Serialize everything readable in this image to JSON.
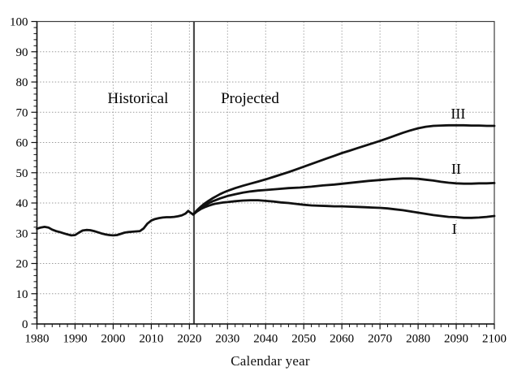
{
  "page": {
    "background": "#ffffff"
  },
  "chart_data": {
    "type": "line",
    "title": "",
    "xlabel": "Calendar year",
    "ylabel": "",
    "xlim": [
      1980,
      2100
    ],
    "ylim": [
      0,
      100
    ],
    "x_ticks": [
      1980,
      1990,
      2000,
      2010,
      2020,
      2030,
      2040,
      2050,
      2060,
      2070,
      2080,
      2090,
      2100
    ],
    "y_ticks": [
      0,
      10,
      20,
      30,
      40,
      50,
      60,
      70,
      80,
      90,
      100
    ],
    "x_minor_step": 2,
    "y_minor_step": 2,
    "grid": "dotted",
    "legend_position": "none",
    "line_color": "#111111",
    "grid_color": "#9b9b9b",
    "border_color": "#3c3c3c",
    "divider_color": "#4a4a4a",
    "text_color": "#000000",
    "divider_x": 2021.2,
    "annotations": [
      {
        "text": "Historical",
        "x": 2006.5,
        "y": 74.6
      },
      {
        "text": "Projected",
        "x": 2035.9,
        "y": 74.6
      }
    ],
    "series": [
      {
        "name": "historical",
        "label": "",
        "points": [
          [
            1980,
            31.5
          ],
          [
            1981,
            31.9
          ],
          [
            1982,
            32.1
          ],
          [
            1983,
            31.9
          ],
          [
            1984,
            31.2
          ],
          [
            1985,
            30.7
          ],
          [
            1986,
            30.4
          ],
          [
            1987,
            30.0
          ],
          [
            1988,
            29.6
          ],
          [
            1989,
            29.3
          ],
          [
            1990,
            29.4
          ],
          [
            1991,
            30.2
          ],
          [
            1992,
            30.9
          ],
          [
            1993,
            31.1
          ],
          [
            1994,
            31.0
          ],
          [
            1995,
            30.7
          ],
          [
            1996,
            30.3
          ],
          [
            1997,
            29.9
          ],
          [
            1998,
            29.6
          ],
          [
            1999,
            29.4
          ],
          [
            2000,
            29.3
          ],
          [
            2001,
            29.4
          ],
          [
            2002,
            29.8
          ],
          [
            2003,
            30.2
          ],
          [
            2004,
            30.4
          ],
          [
            2005,
            30.5
          ],
          [
            2006,
            30.6
          ],
          [
            2007,
            30.7
          ],
          [
            2008,
            31.6
          ],
          [
            2009,
            33.2
          ],
          [
            2010,
            34.2
          ],
          [
            2011,
            34.7
          ],
          [
            2012,
            35.0
          ],
          [
            2013,
            35.2
          ],
          [
            2014,
            35.3
          ],
          [
            2015,
            35.3
          ],
          [
            2016,
            35.4
          ],
          [
            2017,
            35.6
          ],
          [
            2018,
            35.9
          ],
          [
            2019,
            36.5
          ],
          [
            2019.7,
            37.4
          ],
          [
            2020.4,
            36.7
          ],
          [
            2021,
            36.2
          ]
        ]
      },
      {
        "name": "alternative-III",
        "label": "III",
        "label_at": [
          2090.5,
          69.5
        ],
        "points": [
          [
            2021,
            36.2
          ],
          [
            2022,
            37.6
          ],
          [
            2023,
            38.8
          ],
          [
            2024,
            39.8
          ],
          [
            2025,
            40.7
          ],
          [
            2026,
            41.5
          ],
          [
            2027,
            42.2
          ],
          [
            2028,
            42.9
          ],
          [
            2029,
            43.5
          ],
          [
            2030,
            44.0
          ],
          [
            2032,
            44.9
          ],
          [
            2034,
            45.7
          ],
          [
            2036,
            46.4
          ],
          [
            2038,
            47.1
          ],
          [
            2040,
            47.8
          ],
          [
            2042,
            48.6
          ],
          [
            2044,
            49.4
          ],
          [
            2046,
            50.2
          ],
          [
            2048,
            51.1
          ],
          [
            2050,
            52.0
          ],
          [
            2052,
            52.9
          ],
          [
            2054,
            53.8
          ],
          [
            2056,
            54.7
          ],
          [
            2058,
            55.6
          ],
          [
            2060,
            56.5
          ],
          [
            2062,
            57.3
          ],
          [
            2064,
            58.1
          ],
          [
            2066,
            58.9
          ],
          [
            2068,
            59.7
          ],
          [
            2070,
            60.5
          ],
          [
            2072,
            61.4
          ],
          [
            2074,
            62.3
          ],
          [
            2076,
            63.2
          ],
          [
            2078,
            64.0
          ],
          [
            2080,
            64.7
          ],
          [
            2082,
            65.2
          ],
          [
            2084,
            65.5
          ],
          [
            2086,
            65.6
          ],
          [
            2088,
            65.7
          ],
          [
            2090,
            65.7
          ],
          [
            2092,
            65.7
          ],
          [
            2094,
            65.6
          ],
          [
            2096,
            65.6
          ],
          [
            2098,
            65.5
          ],
          [
            2100,
            65.5
          ]
        ]
      },
      {
        "name": "alternative-II",
        "label": "II",
        "label_at": [
          2090.0,
          51.3
        ],
        "points": [
          [
            2021,
            36.2
          ],
          [
            2022,
            37.4
          ],
          [
            2023,
            38.4
          ],
          [
            2024,
            39.2
          ],
          [
            2025,
            39.9
          ],
          [
            2026,
            40.5
          ],
          [
            2027,
            41.0
          ],
          [
            2028,
            41.5
          ],
          [
            2029,
            41.9
          ],
          [
            2030,
            42.3
          ],
          [
            2032,
            42.9
          ],
          [
            2034,
            43.4
          ],
          [
            2036,
            43.8
          ],
          [
            2038,
            44.1
          ],
          [
            2040,
            44.3
          ],
          [
            2043,
            44.6
          ],
          [
            2046,
            44.9
          ],
          [
            2049,
            45.1
          ],
          [
            2052,
            45.4
          ],
          [
            2055,
            45.8
          ],
          [
            2058,
            46.1
          ],
          [
            2061,
            46.5
          ],
          [
            2064,
            46.9
          ],
          [
            2067,
            47.3
          ],
          [
            2070,
            47.6
          ],
          [
            2073,
            47.9
          ],
          [
            2076,
            48.1
          ],
          [
            2078,
            48.1
          ],
          [
            2080,
            48.0
          ],
          [
            2082,
            47.7
          ],
          [
            2084,
            47.4
          ],
          [
            2086,
            47.0
          ],
          [
            2088,
            46.7
          ],
          [
            2090,
            46.5
          ],
          [
            2092,
            46.4
          ],
          [
            2094,
            46.4
          ],
          [
            2096,
            46.5
          ],
          [
            2098,
            46.5
          ],
          [
            2100,
            46.6
          ]
        ]
      },
      {
        "name": "alternative-I",
        "label": "I",
        "label_at": [
          2089.5,
          31.4
        ],
        "points": [
          [
            2021,
            36.2
          ],
          [
            2022,
            37.2
          ],
          [
            2023,
            38.0
          ],
          [
            2024,
            38.6
          ],
          [
            2025,
            39.1
          ],
          [
            2026,
            39.5
          ],
          [
            2027,
            39.8
          ],
          [
            2028,
            40.0
          ],
          [
            2029,
            40.2
          ],
          [
            2030,
            40.3
          ],
          [
            2032,
            40.6
          ],
          [
            2034,
            40.8
          ],
          [
            2036,
            40.9
          ],
          [
            2038,
            40.9
          ],
          [
            2040,
            40.7
          ],
          [
            2042,
            40.5
          ],
          [
            2044,
            40.2
          ],
          [
            2046,
            40.0
          ],
          [
            2048,
            39.7
          ],
          [
            2050,
            39.4
          ],
          [
            2052,
            39.2
          ],
          [
            2054,
            39.1
          ],
          [
            2056,
            39.0
          ],
          [
            2058,
            38.9
          ],
          [
            2060,
            38.9
          ],
          [
            2062,
            38.8
          ],
          [
            2064,
            38.7
          ],
          [
            2066,
            38.6
          ],
          [
            2068,
            38.5
          ],
          [
            2070,
            38.4
          ],
          [
            2072,
            38.2
          ],
          [
            2074,
            37.9
          ],
          [
            2076,
            37.6
          ],
          [
            2078,
            37.2
          ],
          [
            2080,
            36.8
          ],
          [
            2082,
            36.4
          ],
          [
            2084,
            36.0
          ],
          [
            2086,
            35.7
          ],
          [
            2088,
            35.4
          ],
          [
            2090,
            35.3
          ],
          [
            2092,
            35.1
          ],
          [
            2094,
            35.1
          ],
          [
            2096,
            35.2
          ],
          [
            2098,
            35.4
          ],
          [
            2100,
            35.7
          ]
        ]
      }
    ]
  }
}
